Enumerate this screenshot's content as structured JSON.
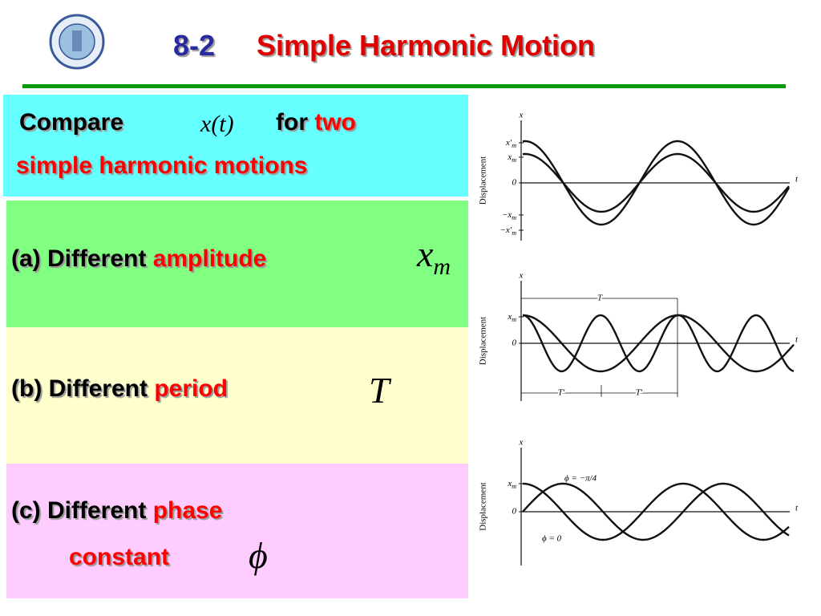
{
  "header": {
    "number": "8-2",
    "title": "Simple Harmonic Motion"
  },
  "intro": {
    "compare": "Compare",
    "function": "x(t)",
    "for": "for",
    "two": "two",
    "rest": "simple harmonic motions"
  },
  "items": [
    {
      "label": "(a) Different",
      "highlight": "amplitude",
      "symbol": "x",
      "subscript": "m"
    },
    {
      "label": "(b) Different",
      "highlight": "period",
      "symbol": "T"
    },
    {
      "label": "(c) Different",
      "highlight": "phase",
      "highlight2": "constant",
      "symbol": "ϕ"
    }
  ],
  "figures": [
    {
      "y_label": "Displacement",
      "x_axis": "x",
      "t_axis": "t",
      "ticks": [
        {
          "base": "x′",
          "sub": "m"
        },
        {
          "base": "x",
          "sub": "m"
        },
        "0",
        {
          "base": "−x",
          "sub": "m"
        },
        {
          "base": "−x′",
          "sub": "m"
        }
      ]
    },
    {
      "y_label": "Displacement",
      "x_axis": "x",
      "t_axis": "t",
      "ticks": [
        {
          "base": "x",
          "sub": "m"
        },
        "0"
      ],
      "period_labels": [
        "T",
        "T′",
        "T′"
      ]
    },
    {
      "y_label": "Displacement",
      "x_axis": "x",
      "t_axis": "t",
      "ticks": [
        {
          "base": "x",
          "sub": "m"
        },
        "0"
      ],
      "curve_labels": [
        "ϕ = −π/4",
        "ϕ = 0"
      ]
    }
  ]
}
